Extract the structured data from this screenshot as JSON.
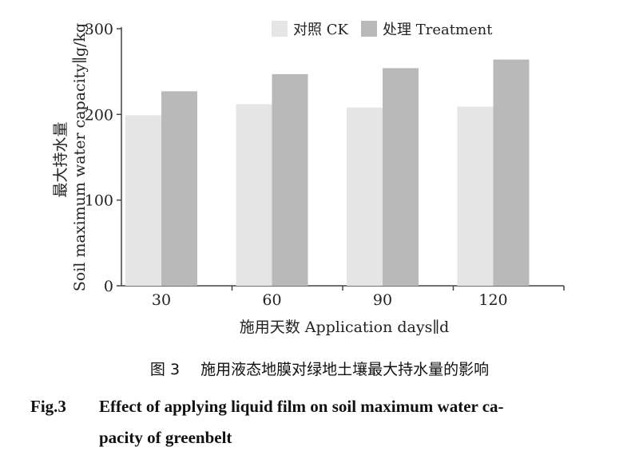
{
  "chart_data": {
    "type": "bar",
    "categories": [
      "30",
      "60",
      "90",
      "120"
    ],
    "series": [
      {
        "name": "对照 CK",
        "values": [
          199,
          212,
          208,
          209
        ],
        "color": "#e5e5e5"
      },
      {
        "name": "处理 Treatment",
        "values": [
          227,
          247,
          254,
          264
        ],
        "color": "#b9b9b9"
      }
    ],
    "ylim": [
      0,
      300
    ],
    "yticks": [
      "0",
      "100",
      "200",
      "300"
    ],
    "xlabel": "施用天数 Application days∥d",
    "ylabel_cn": "最大持水量",
    "ylabel_en": "Soil maximum water capacity∥g/kg",
    "grid": false,
    "legend_position": "top-right"
  },
  "caption": {
    "cn_label": "图 3",
    "cn_text": "施用液态地膜对绿地土壤最大持水量的影响",
    "en_label": "Fig.3",
    "en_line1": "Effect of applying liquid film on soil maximum water ca-",
    "en_line2": "pacity of greenbelt"
  }
}
